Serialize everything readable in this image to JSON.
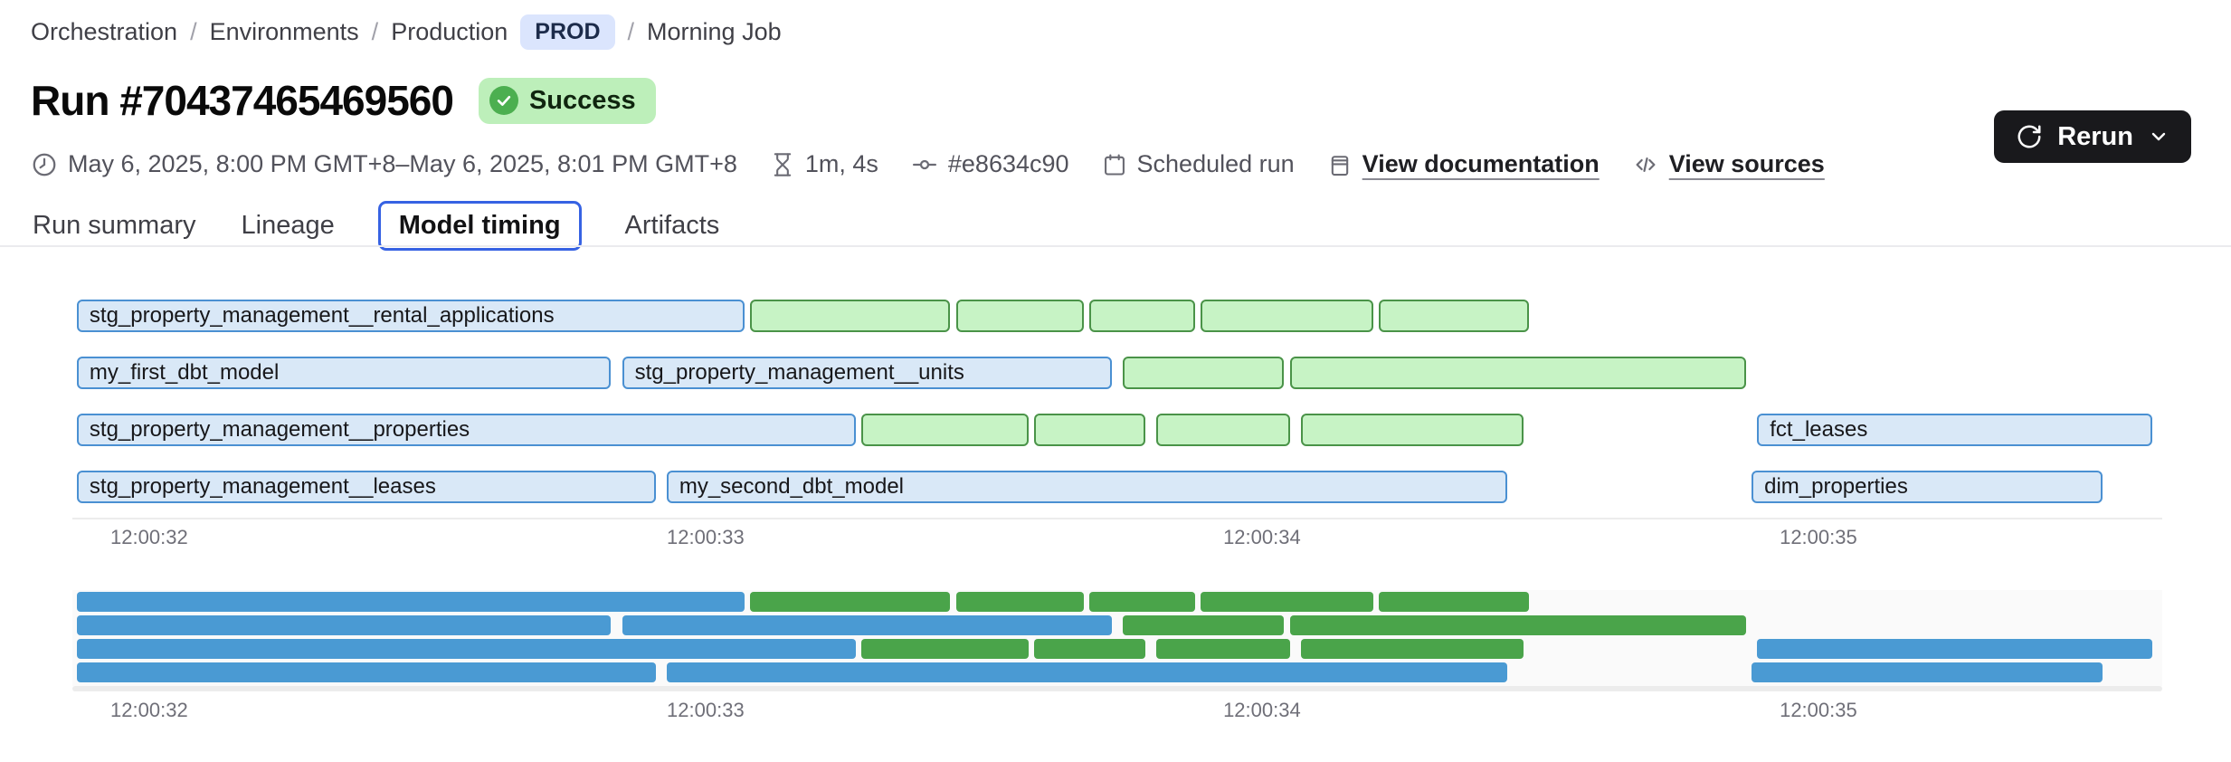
{
  "breadcrumb": {
    "separator": "/",
    "items": [
      "Orchestration",
      "Environments",
      "Production"
    ],
    "env_badge": "PROD",
    "current": "Morning Job"
  },
  "header": {
    "title": "Run #70437465469560",
    "status": "Success"
  },
  "toolbar": {
    "rerun_label": "Rerun"
  },
  "meta": {
    "datetime": "May 6, 2025, 8:00 PM GMT+8–May 6, 2025, 8:01 PM GMT+8",
    "duration": "1m, 4s",
    "commit": "#e8634c90",
    "trigger": "Scheduled run",
    "doc_link": "View documentation",
    "sources_link": "View sources"
  },
  "tabs": [
    {
      "label": "Run summary",
      "active": false
    },
    {
      "label": "Lineage",
      "active": false
    },
    {
      "label": "Model timing",
      "active": true
    },
    {
      "label": "Artifacts",
      "active": false
    }
  ],
  "colors": {
    "accent_blue": "#3662e3",
    "badge_env_bg": "#dbe5fd",
    "status_bg": "#bdefba",
    "status_dot": "#4caf50",
    "model_fill": "#d9e8f7",
    "model_border": "#4a90d2",
    "other_fill": "#c7f3c5",
    "other_border": "#4a9348",
    "minimap_model": "#4a9ad3",
    "minimap_other": "#4aa44a"
  },
  "chart_data": {
    "type": "gantt",
    "title": "Model timing",
    "x_domain_seconds": [
      31.862,
      35.618
    ],
    "ticks": [
      {
        "value": 32,
        "label": "12:00:32"
      },
      {
        "value": 33,
        "label": "12:00:33"
      },
      {
        "value": 34,
        "label": "12:00:34"
      },
      {
        "value": 35,
        "label": "12:00:35"
      }
    ],
    "rows": [
      [
        {
          "label": "stg_property_management__rental_applications",
          "kind": "model",
          "start": 31.87,
          "end": 33.07
        },
        {
          "label": null,
          "kind": "other",
          "start": 33.08,
          "end": 33.44
        },
        {
          "label": null,
          "kind": "other",
          "start": 33.45,
          "end": 33.68
        },
        {
          "label": null,
          "kind": "other",
          "start": 33.69,
          "end": 33.88
        },
        {
          "label": null,
          "kind": "other",
          "start": 33.89,
          "end": 34.2
        },
        {
          "label": null,
          "kind": "other",
          "start": 34.21,
          "end": 34.48
        }
      ],
      [
        {
          "label": "my_first_dbt_model",
          "kind": "model",
          "start": 31.87,
          "end": 32.83
        },
        {
          "label": "stg_property_management__units",
          "kind": "model",
          "start": 32.85,
          "end": 33.73
        },
        {
          "label": null,
          "kind": "other",
          "start": 33.75,
          "end": 34.04
        },
        {
          "label": null,
          "kind": "other",
          "start": 34.05,
          "end": 34.87
        }
      ],
      [
        {
          "label": "stg_property_management__properties",
          "kind": "model",
          "start": 31.87,
          "end": 33.27
        },
        {
          "label": null,
          "kind": "other",
          "start": 33.28,
          "end": 33.58
        },
        {
          "label": null,
          "kind": "other",
          "start": 33.59,
          "end": 33.79
        },
        {
          "label": null,
          "kind": "other",
          "start": 33.81,
          "end": 34.05
        },
        {
          "label": null,
          "kind": "other",
          "start": 34.07,
          "end": 34.47
        },
        {
          "label": "fct_leases",
          "kind": "model",
          "start": 34.89,
          "end": 35.6
        }
      ],
      [
        {
          "label": "stg_property_management__leases",
          "kind": "model",
          "start": 31.87,
          "end": 32.91
        },
        {
          "label": "my_second_dbt_model",
          "kind": "model",
          "start": 32.93,
          "end": 34.44
        },
        {
          "label": "dim_properties",
          "kind": "model",
          "start": 34.88,
          "end": 35.51
        }
      ]
    ],
    "legend": "off",
    "grid": "off"
  }
}
